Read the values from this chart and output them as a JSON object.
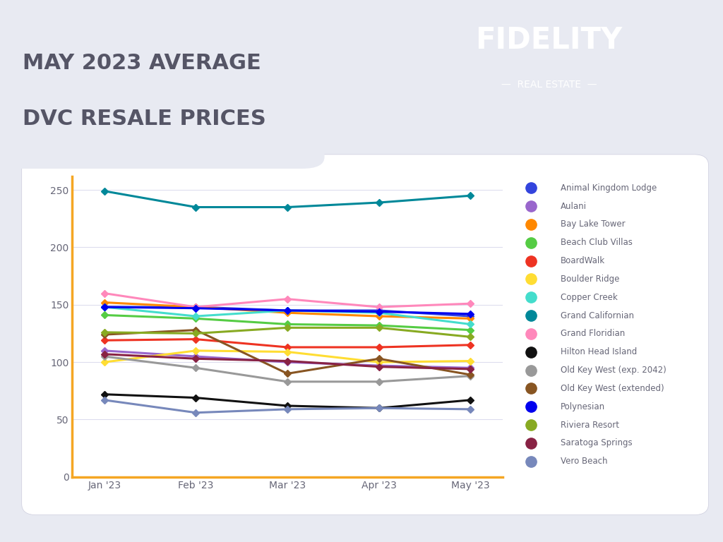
{
  "months": [
    "Jan '23",
    "Feb '23",
    "Mar '23",
    "Apr '23",
    "May '23"
  ],
  "series": [
    {
      "name": "Animal Kingdom Lodge",
      "color": "#3344DD",
      "data": [
        148,
        148,
        145,
        145,
        140
      ]
    },
    {
      "name": "Aulani",
      "color": "#9966CC",
      "data": [
        110,
        105,
        100,
        97,
        95
      ]
    },
    {
      "name": "Bay Lake Tower",
      "color": "#FF8800",
      "data": [
        152,
        148,
        143,
        140,
        138
      ]
    },
    {
      "name": "Beach Club Villas",
      "color": "#55CC44",
      "data": [
        141,
        138,
        133,
        132,
        128
      ]
    },
    {
      "name": "BoardWalk",
      "color": "#EE3322",
      "data": [
        119,
        120,
        113,
        113,
        115
      ]
    },
    {
      "name": "Boulder Ridge",
      "color": "#FFDD33",
      "data": [
        100,
        110,
        109,
        100,
        101
      ]
    },
    {
      "name": "Copper Creek",
      "color": "#44DDCC",
      "data": [
        148,
        140,
        145,
        143,
        133
      ]
    },
    {
      "name": "Grand Californian",
      "color": "#008899",
      "data": [
        249,
        235,
        235,
        239,
        245
      ]
    },
    {
      "name": "Grand Floridian",
      "color": "#FF88BB",
      "data": [
        160,
        148,
        155,
        148,
        151
      ]
    },
    {
      "name": "Hilton Head Island",
      "color": "#111111",
      "data": [
        72,
        69,
        62,
        60,
        67
      ]
    },
    {
      "name": "Old Key West (exp. 2042)",
      "color": "#999999",
      "data": [
        105,
        95,
        83,
        83,
        88
      ]
    },
    {
      "name": "Old Key West (extended)",
      "color": "#885522",
      "data": [
        124,
        128,
        90,
        103,
        89
      ]
    },
    {
      "name": "Polynesian",
      "color": "#0000EE",
      "data": [
        148,
        147,
        145,
        144,
        142
      ]
    },
    {
      "name": "Riviera Resort",
      "color": "#88AA22",
      "data": [
        126,
        125,
        130,
        130,
        122
      ]
    },
    {
      "name": "Saratoga Springs",
      "color": "#882244",
      "data": [
        107,
        103,
        101,
        96,
        94
      ]
    },
    {
      "name": "Vero Beach",
      "color": "#7788BB",
      "data": [
        67,
        56,
        59,
        60,
        59
      ]
    }
  ],
  "ylim": [
    0,
    262
  ],
  "yticks": [
    0,
    50,
    100,
    150,
    200,
    250
  ],
  "background_color": "#E8EAF2",
  "chart_bg": "#FFFFFF",
  "header_color": "#F5A623",
  "title_line1": "MAY 2023 AVERAGE",
  "title_line2": "DVC RESALE PRICES",
  "title_color": "#555566",
  "axis_color": "#F5A623",
  "grid_color": "#DDDDEE",
  "tick_color": "#666677",
  "fidelity_text": "FIDELITY",
  "real_estate_text": "—  REAL ESTATE  —"
}
